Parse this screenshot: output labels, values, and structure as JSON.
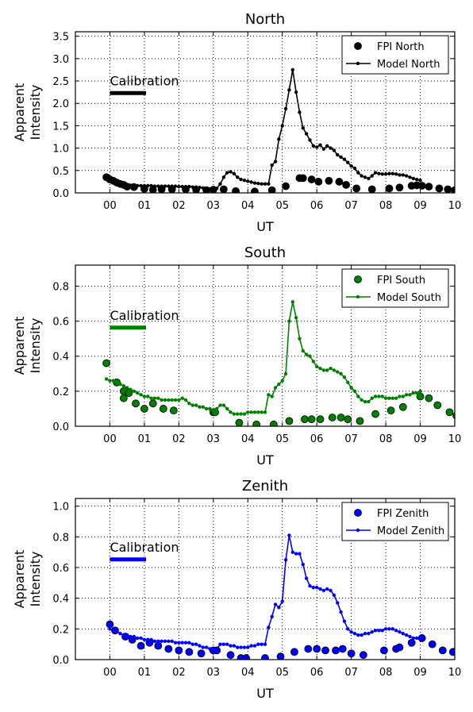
{
  "chart_data": [
    {
      "type": "line",
      "title": "North",
      "xlabel": "UT",
      "ylabel": [
        "Apparent",
        "Intensity"
      ],
      "xlim": [
        -1,
        10
      ],
      "ylim": [
        0,
        3.6
      ],
      "xticks": [
        "00",
        "01",
        "02",
        "03",
        "04",
        "05",
        "06",
        "07",
        "08",
        "09",
        "10"
      ],
      "yticks": [
        0.0,
        0.5,
        1.0,
        1.5,
        2.0,
        2.5,
        3.0,
        3.5
      ],
      "grid": true,
      "legend_position": "top-right",
      "color": "#000000",
      "annotation": {
        "text": "Calibration",
        "bar_x": [
          0.0,
          1.05
        ],
        "bar_y": 2.23
      },
      "series": [
        {
          "name": "FPI North",
          "kind": "markers",
          "x": [
            -0.1,
            0.0,
            0.1,
            0.2,
            0.3,
            0.4,
            0.5,
            0.7,
            1.0,
            1.25,
            1.5,
            1.8,
            2.2,
            2.5,
            2.8,
            3.0,
            3.3,
            3.65,
            4.2,
            4.7,
            5.1,
            5.5,
            5.6,
            5.85,
            6.05,
            6.35,
            6.65,
            6.85,
            7.15,
            7.6,
            8.1,
            8.4,
            8.75,
            8.9,
            9.05,
            9.25,
            9.55,
            9.8,
            10.0
          ],
          "y": [
            0.35,
            0.3,
            0.27,
            0.23,
            0.2,
            0.18,
            0.14,
            0.13,
            0.09,
            0.07,
            0.08,
            0.08,
            0.08,
            0.07,
            0.06,
            0.07,
            0.08,
            0.04,
            0.03,
            0.06,
            0.15,
            0.33,
            0.33,
            0.3,
            0.25,
            0.27,
            0.25,
            0.18,
            0.1,
            0.08,
            0.1,
            0.12,
            0.16,
            0.17,
            0.16,
            0.14,
            0.1,
            0.08,
            0.06
          ]
        },
        {
          "name": "Model North",
          "kind": "line",
          "x": [
            -0.1,
            0.0,
            0.1,
            0.2,
            0.3,
            0.4,
            0.5,
            0.6,
            0.7,
            0.8,
            0.9,
            1.0,
            1.1,
            1.2,
            1.3,
            1.4,
            1.5,
            1.6,
            1.7,
            1.8,
            1.9,
            2.0,
            2.1,
            2.2,
            2.3,
            2.4,
            2.5,
            2.6,
            2.7,
            2.8,
            2.9,
            3.0,
            3.1,
            3.2,
            3.3,
            3.4,
            3.5,
            3.6,
            3.7,
            3.8,
            3.9,
            4.0,
            4.1,
            4.2,
            4.3,
            4.4,
            4.5,
            4.6,
            4.7,
            4.8,
            4.9,
            5.0,
            5.1,
            5.2,
            5.3,
            5.4,
            5.5,
            5.6,
            5.7,
            5.8,
            5.9,
            6.0,
            6.1,
            6.2,
            6.3,
            6.4,
            6.5,
            6.6,
            6.7,
            6.8,
            6.9,
            7.0,
            7.1,
            7.2,
            7.3,
            7.4,
            7.5,
            7.6,
            7.7,
            7.8,
            7.9,
            8.0,
            8.1,
            8.2,
            8.3,
            8.4,
            8.5,
            8.6,
            8.7,
            8.8,
            8.9,
            9.0
          ],
          "y": [
            0.3,
            0.27,
            0.24,
            0.22,
            0.2,
            0.19,
            0.18,
            0.17,
            0.17,
            0.16,
            0.16,
            0.16,
            0.16,
            0.16,
            0.15,
            0.15,
            0.15,
            0.15,
            0.15,
            0.15,
            0.15,
            0.14,
            0.14,
            0.14,
            0.14,
            0.13,
            0.13,
            0.12,
            0.11,
            0.1,
            0.09,
            0.09,
            0.1,
            0.2,
            0.35,
            0.45,
            0.47,
            0.43,
            0.35,
            0.3,
            0.28,
            0.26,
            0.24,
            0.22,
            0.21,
            0.2,
            0.2,
            0.2,
            0.62,
            0.7,
            1.2,
            1.5,
            1.88,
            2.3,
            2.75,
            2.25,
            1.8,
            1.45,
            1.32,
            1.18,
            1.05,
            1.02,
            1.07,
            0.98,
            1.05,
            1.0,
            0.95,
            0.85,
            0.8,
            0.75,
            0.68,
            0.6,
            0.55,
            0.45,
            0.38,
            0.35,
            0.32,
            0.38,
            0.45,
            0.43,
            0.42,
            0.42,
            0.43,
            0.43,
            0.42,
            0.4,
            0.4,
            0.38,
            0.35,
            0.32,
            0.3,
            0.28
          ]
        }
      ]
    },
    {
      "type": "line",
      "title": "South",
      "xlabel": "UT",
      "ylabel": [
        "Apparent",
        "Intensity"
      ],
      "xlim": [
        -1,
        10
      ],
      "ylim": [
        0,
        0.92
      ],
      "xticks": [
        "00",
        "01",
        "02",
        "03",
        "04",
        "05",
        "06",
        "07",
        "08",
        "09",
        "10"
      ],
      "yticks": [
        0.0,
        0.2,
        0.4,
        0.6,
        0.8
      ],
      "grid": true,
      "legend_position": "top-right",
      "color": "#008000",
      "annotation": {
        "text": "Calibration",
        "bar_x": [
          0.0,
          1.05
        ],
        "bar_y": 0.563
      },
      "series": [
        {
          "name": "FPI South",
          "kind": "markers",
          "x": [
            -0.1,
            0.2,
            0.4,
            0.4,
            0.55,
            0.75,
            1.0,
            1.25,
            1.55,
            1.85,
            3.0,
            3.05,
            3.75,
            4.25,
            4.75,
            5.2,
            5.65,
            5.85,
            6.1,
            6.45,
            6.7,
            6.9,
            7.25,
            7.7,
            8.15,
            8.5,
            9.0,
            9.25,
            9.5,
            9.85,
            10.05
          ],
          "y": [
            0.36,
            0.25,
            0.2,
            0.16,
            0.19,
            0.13,
            0.1,
            0.13,
            0.1,
            0.09,
            0.08,
            0.08,
            0.02,
            0.01,
            0.01,
            0.03,
            0.04,
            0.04,
            0.04,
            0.05,
            0.05,
            0.04,
            0.03,
            0.07,
            0.09,
            0.11,
            0.17,
            0.16,
            0.12,
            0.08,
            0.06
          ]
        },
        {
          "name": "Model South",
          "kind": "line",
          "x": [
            -0.1,
            0.0,
            0.1,
            0.2,
            0.3,
            0.4,
            0.5,
            0.6,
            0.7,
            0.8,
            0.9,
            1.0,
            1.1,
            1.2,
            1.3,
            1.4,
            1.5,
            1.6,
            1.7,
            1.8,
            1.9,
            2.0,
            2.1,
            2.2,
            2.3,
            2.4,
            2.5,
            2.6,
            2.7,
            2.8,
            2.9,
            3.0,
            3.1,
            3.2,
            3.3,
            3.4,
            3.5,
            3.6,
            3.7,
            3.8,
            3.9,
            4.0,
            4.1,
            4.2,
            4.3,
            4.4,
            4.5,
            4.6,
            4.7,
            4.8,
            4.9,
            5.0,
            5.1,
            5.2,
            5.3,
            5.4,
            5.5,
            5.6,
            5.7,
            5.8,
            5.9,
            6.0,
            6.1,
            6.2,
            6.3,
            6.4,
            6.5,
            6.6,
            6.7,
            6.8,
            6.9,
            7.0,
            7.1,
            7.2,
            7.3,
            7.4,
            7.5,
            7.6,
            7.7,
            7.8,
            7.9,
            8.0,
            8.1,
            8.2,
            8.3,
            8.4,
            8.5,
            8.6,
            8.7,
            8.8,
            8.9,
            9.0
          ],
          "y": [
            0.27,
            0.26,
            0.26,
            0.25,
            0.24,
            0.23,
            0.22,
            0.21,
            0.2,
            0.19,
            0.18,
            0.17,
            0.17,
            0.16,
            0.16,
            0.16,
            0.15,
            0.15,
            0.15,
            0.15,
            0.15,
            0.15,
            0.16,
            0.15,
            0.13,
            0.12,
            0.12,
            0.11,
            0.11,
            0.1,
            0.1,
            0.09,
            0.1,
            0.12,
            0.12,
            0.1,
            0.08,
            0.07,
            0.07,
            0.07,
            0.07,
            0.08,
            0.08,
            0.08,
            0.08,
            0.08,
            0.08,
            0.18,
            0.17,
            0.22,
            0.24,
            0.26,
            0.3,
            0.6,
            0.71,
            0.62,
            0.5,
            0.43,
            0.41,
            0.4,
            0.37,
            0.34,
            0.33,
            0.32,
            0.32,
            0.33,
            0.32,
            0.31,
            0.3,
            0.28,
            0.25,
            0.22,
            0.2,
            0.17,
            0.15,
            0.14,
            0.14,
            0.16,
            0.17,
            0.17,
            0.17,
            0.16,
            0.16,
            0.16,
            0.16,
            0.17,
            0.17,
            0.18,
            0.18,
            0.19,
            0.19,
            0.2
          ]
        }
      ]
    },
    {
      "type": "line",
      "title": "Zenith",
      "xlabel": "UT",
      "ylabel": [
        "Apparent",
        "Intensity"
      ],
      "xlim": [
        -1,
        10
      ],
      "ylim": [
        0,
        1.05
      ],
      "xticks": [
        "00",
        "01",
        "02",
        "03",
        "04",
        "05",
        "06",
        "07",
        "08",
        "09",
        "10"
      ],
      "yticks": [
        0.0,
        0.2,
        0.4,
        0.6,
        0.8,
        1.0
      ],
      "grid": true,
      "legend_position": "top-right",
      "color": "#0000ff",
      "annotation": {
        "text": "Calibration",
        "bar_x": [
          0.0,
          1.05
        ],
        "bar_y": 0.653
      },
      "series": [
        {
          "name": "FPI Zenith",
          "kind": "markers",
          "x": [
            0.0,
            0.15,
            0.45,
            0.65,
            0.9,
            1.15,
            1.4,
            1.7,
            2.0,
            2.3,
            2.65,
            3.0,
            3.1,
            3.5,
            3.8,
            3.95,
            4.5,
            4.95,
            5.35,
            5.75,
            6.0,
            6.25,
            6.55,
            6.75,
            7.0,
            7.35,
            7.95,
            8.3,
            8.4,
            8.75,
            9.05,
            9.35,
            9.65,
            9.95
          ],
          "y": [
            0.23,
            0.19,
            0.15,
            0.13,
            0.09,
            0.11,
            0.09,
            0.07,
            0.06,
            0.05,
            0.04,
            0.06,
            0.06,
            0.03,
            0.01,
            0.01,
            0.01,
            0.02,
            0.05,
            0.07,
            0.07,
            0.06,
            0.06,
            0.07,
            0.04,
            0.03,
            0.06,
            0.07,
            0.08,
            0.11,
            0.14,
            0.1,
            0.06,
            0.05
          ]
        },
        {
          "name": "Model Zenith",
          "kind": "line",
          "x": [
            0.0,
            0.1,
            0.2,
            0.3,
            0.4,
            0.5,
            0.6,
            0.7,
            0.8,
            0.9,
            1.0,
            1.1,
            1.2,
            1.3,
            1.4,
            1.5,
            1.6,
            1.7,
            1.8,
            1.9,
            2.0,
            2.1,
            2.2,
            2.3,
            2.4,
            2.5,
            2.6,
            2.7,
            2.8,
            2.9,
            3.0,
            3.1,
            3.2,
            3.3,
            3.4,
            3.5,
            3.6,
            3.7,
            3.8,
            3.9,
            4.0,
            4.1,
            4.2,
            4.3,
            4.4,
            4.5,
            4.6,
            4.7,
            4.8,
            4.9,
            5.0,
            5.1,
            5.2,
            5.3,
            5.4,
            5.5,
            5.6,
            5.7,
            5.8,
            5.9,
            6.0,
            6.1,
            6.2,
            6.3,
            6.4,
            6.5,
            6.6,
            6.7,
            6.8,
            6.9,
            7.0,
            7.1,
            7.2,
            7.3,
            7.4,
            7.5,
            7.6,
            7.7,
            7.8,
            7.9,
            8.0,
            8.1,
            8.2,
            8.3,
            8.4,
            8.5,
            8.6,
            8.7,
            8.8,
            8.9,
            9.0
          ],
          "y": [
            0.2,
            0.19,
            0.18,
            0.17,
            0.16,
            0.16,
            0.15,
            0.15,
            0.14,
            0.14,
            0.13,
            0.13,
            0.13,
            0.12,
            0.12,
            0.12,
            0.12,
            0.12,
            0.12,
            0.11,
            0.11,
            0.11,
            0.11,
            0.11,
            0.1,
            0.1,
            0.09,
            0.08,
            0.08,
            0.07,
            0.07,
            0.07,
            0.1,
            0.1,
            0.1,
            0.09,
            0.09,
            0.08,
            0.08,
            0.08,
            0.08,
            0.09,
            0.09,
            0.1,
            0.1,
            0.1,
            0.21,
            0.28,
            0.36,
            0.34,
            0.38,
            0.65,
            0.81,
            0.7,
            0.69,
            0.69,
            0.62,
            0.53,
            0.48,
            0.47,
            0.47,
            0.46,
            0.45,
            0.46,
            0.45,
            0.42,
            0.37,
            0.31,
            0.25,
            0.2,
            0.18,
            0.17,
            0.16,
            0.16,
            0.17,
            0.17,
            0.18,
            0.19,
            0.19,
            0.19,
            0.2,
            0.2,
            0.2,
            0.19,
            0.18,
            0.17,
            0.16,
            0.15,
            0.14,
            0.14,
            0.14
          ]
        }
      ]
    }
  ]
}
